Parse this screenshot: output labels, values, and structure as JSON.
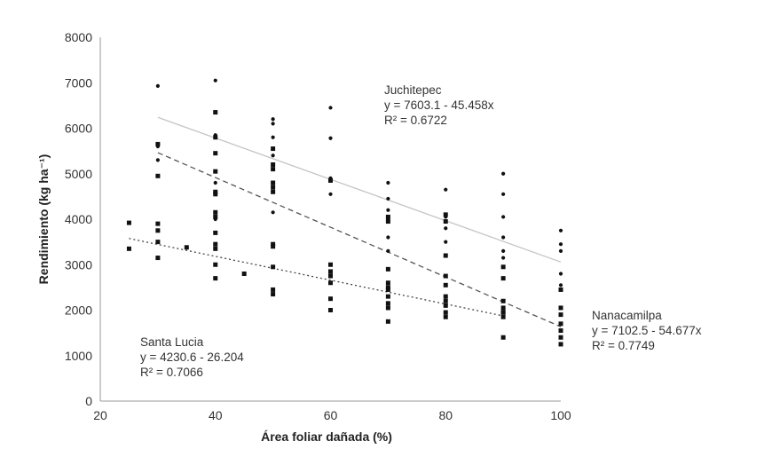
{
  "chart_data": {
    "type": "scatter",
    "title": "",
    "xlabel": "Área foliar dañada (%)",
    "ylabel": "Rendimiento (kg ha⁻¹)",
    "xlim": [
      20,
      100
    ],
    "ylim": [
      0,
      8000
    ],
    "xticks": [
      20,
      40,
      60,
      80,
      100
    ],
    "yticks": [
      0,
      1000,
      2000,
      3000,
      4000,
      5000,
      6000,
      7000,
      8000
    ],
    "grid": false,
    "legend": "none",
    "series": [
      {
        "name": "Juchitepec",
        "marker": "dot",
        "trend": {
          "intercept": 7603.1,
          "slope": -45.458,
          "x": [
            30,
            100
          ],
          "style": "solid",
          "color": "#c4c4c4"
        },
        "annotation": [
          "Juchitepec",
          "y = 7603.1 - 45.458x",
          "R² = 0.6722"
        ],
        "points": [
          [
            30,
            6930
          ],
          [
            30,
            5600
          ],
          [
            30,
            5300
          ],
          [
            40,
            7050
          ],
          [
            40,
            5850
          ],
          [
            40,
            4800
          ],
          [
            40,
            4000
          ],
          [
            50,
            6200
          ],
          [
            50,
            6100
          ],
          [
            50,
            5800
          ],
          [
            50,
            5400
          ],
          [
            50,
            4700
          ],
          [
            50,
            4150
          ],
          [
            60,
            6450
          ],
          [
            60,
            5780
          ],
          [
            60,
            4900
          ],
          [
            60,
            4550
          ],
          [
            70,
            4800
          ],
          [
            70,
            4450
          ],
          [
            70,
            4200
          ],
          [
            70,
            4000
          ],
          [
            70,
            3600
          ],
          [
            70,
            3300
          ],
          [
            80,
            4650
          ],
          [
            80,
            4050
          ],
          [
            80,
            3800
          ],
          [
            80,
            3500
          ],
          [
            90,
            5000
          ],
          [
            90,
            4550
          ],
          [
            90,
            4050
          ],
          [
            90,
            3600
          ],
          [
            90,
            3300
          ],
          [
            90,
            3150
          ],
          [
            100,
            3750
          ],
          [
            100,
            3450
          ],
          [
            100,
            3300
          ],
          [
            100,
            2800
          ],
          [
            100,
            2550
          ]
        ]
      },
      {
        "name": "Nanacamilpa",
        "marker": "square",
        "trend": {
          "intercept": 7102.5,
          "slope": -54.677,
          "x": [
            30,
            100
          ],
          "style": "dashed",
          "color": "#555555"
        },
        "annotation": [
          "Nanacamilpa",
          "y = 7102.5 - 54.677x",
          "R² = 0.7749"
        ],
        "points": [
          [
            30,
            5650
          ],
          [
            30,
            4950
          ],
          [
            30,
            3900
          ],
          [
            30,
            3750
          ],
          [
            30,
            3500
          ],
          [
            30,
            3150
          ],
          [
            40,
            6350
          ],
          [
            40,
            5800
          ],
          [
            40,
            5450
          ],
          [
            40,
            5050
          ],
          [
            40,
            4600
          ],
          [
            40,
            4550
          ],
          [
            40,
            4150
          ],
          [
            40,
            4050
          ],
          [
            40,
            3700
          ],
          [
            40,
            3450
          ],
          [
            40,
            3350
          ],
          [
            40,
            3000
          ],
          [
            40,
            2700
          ],
          [
            50,
            5550
          ],
          [
            50,
            5200
          ],
          [
            50,
            5100
          ],
          [
            50,
            4800
          ],
          [
            50,
            4700
          ],
          [
            50,
            4600
          ],
          [
            50,
            3450
          ],
          [
            50,
            3400
          ],
          [
            50,
            2950
          ],
          [
            50,
            2450
          ],
          [
            50,
            2350
          ],
          [
            60,
            4850
          ],
          [
            60,
            3000
          ],
          [
            60,
            2750
          ],
          [
            60,
            2600
          ],
          [
            60,
            2250
          ],
          [
            60,
            2000
          ],
          [
            70,
            4050
          ],
          [
            70,
            3950
          ],
          [
            70,
            2900
          ],
          [
            70,
            2600
          ],
          [
            70,
            2450
          ],
          [
            70,
            2300
          ],
          [
            70,
            2150
          ],
          [
            70,
            2050
          ],
          [
            70,
            1750
          ],
          [
            80,
            4100
          ],
          [
            80,
            3950
          ],
          [
            80,
            3200
          ],
          [
            80,
            2750
          ],
          [
            80,
            2550
          ],
          [
            80,
            2300
          ],
          [
            80,
            2100
          ],
          [
            80,
            1950
          ],
          [
            80,
            1850
          ],
          [
            90,
            2950
          ],
          [
            90,
            2700
          ],
          [
            90,
            2200
          ],
          [
            90,
            2050
          ],
          [
            90,
            1950
          ],
          [
            90,
            1850
          ],
          [
            90,
            1400
          ],
          [
            100,
            2450
          ],
          [
            100,
            2050
          ],
          [
            100,
            1900
          ],
          [
            100,
            1700
          ],
          [
            100,
            1550
          ],
          [
            100,
            1400
          ],
          [
            100,
            1250
          ]
        ]
      },
      {
        "name": "Santa Lucia",
        "marker": "square",
        "trend": {
          "intercept": 4230.6,
          "slope": -26.204,
          "x": [
            25,
            90
          ],
          "style": "dotted",
          "color": "#444444"
        },
        "annotation": [
          "Santa Lucia",
          "y = 4230.6 - 26.204",
          "R² = 0.7066"
        ],
        "points": [
          [
            25,
            3920
          ],
          [
            25,
            3350
          ],
          [
            35,
            3380
          ],
          [
            45,
            2800
          ],
          [
            60,
            2850
          ],
          [
            70,
            2500
          ],
          [
            80,
            2200
          ],
          [
            90,
            1950
          ]
        ]
      }
    ]
  }
}
